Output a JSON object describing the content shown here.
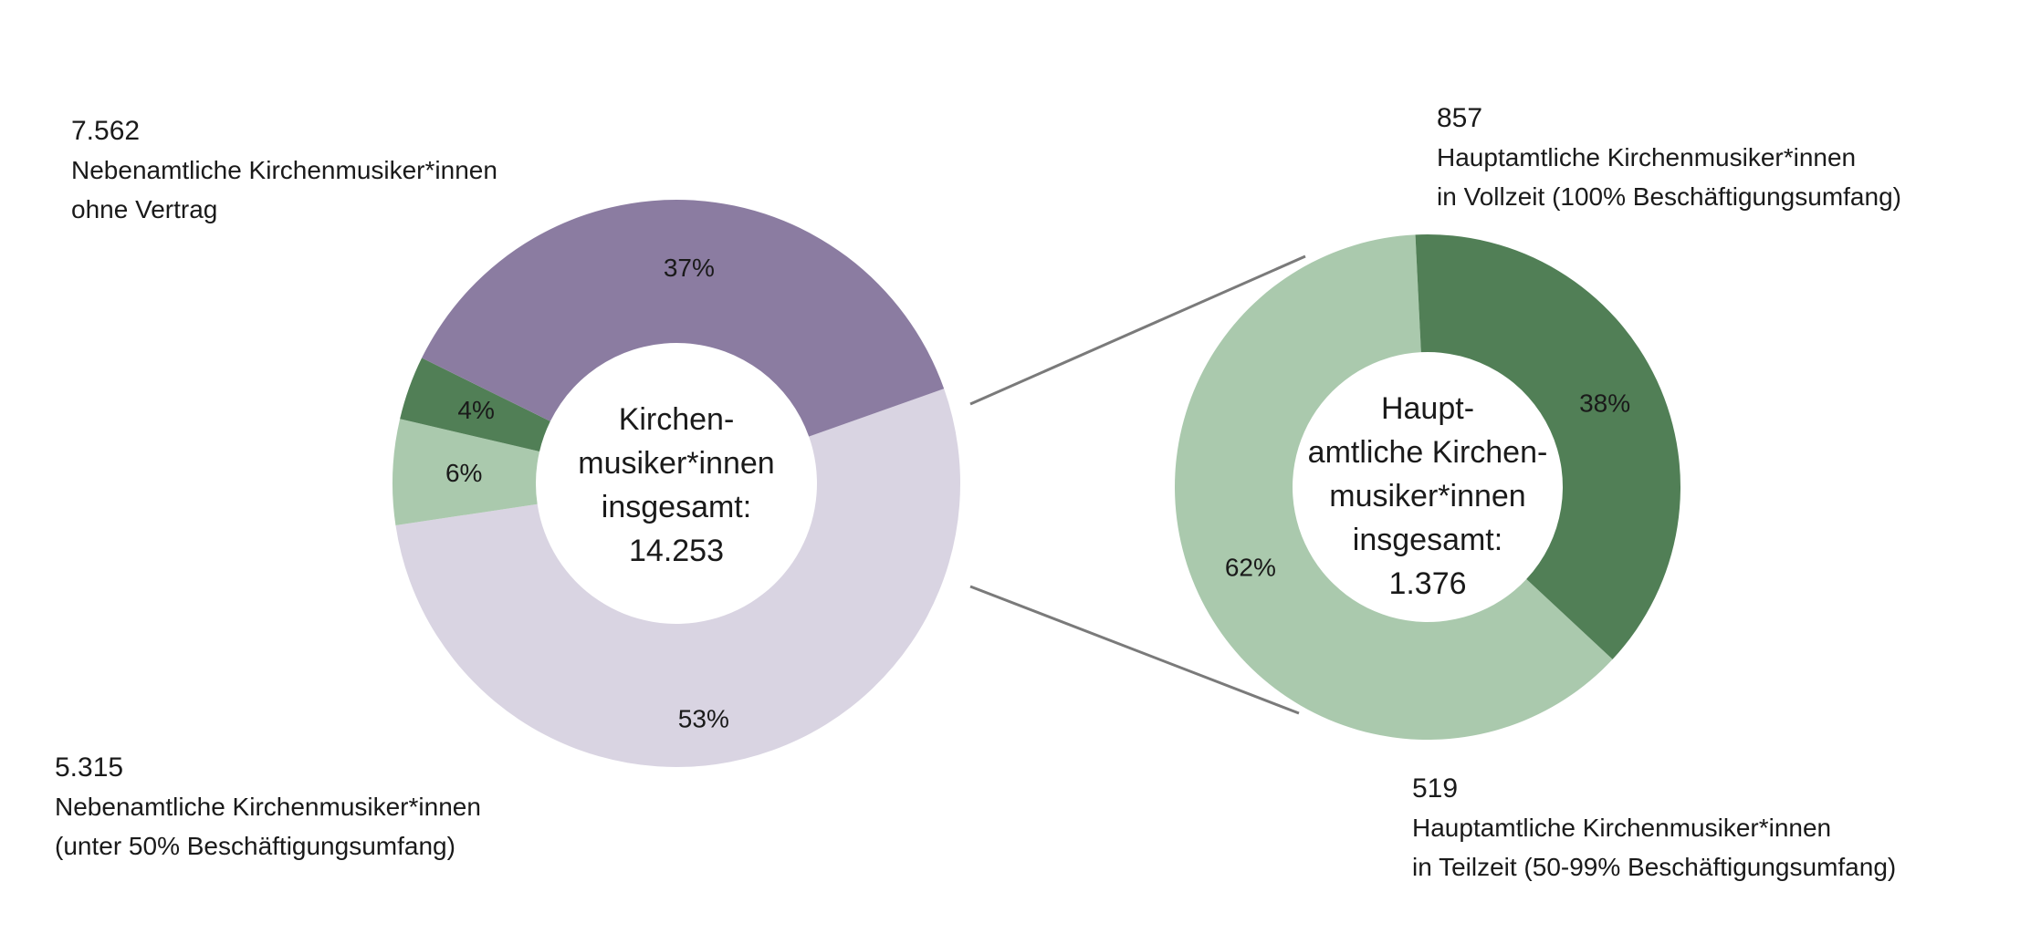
{
  "chart_data": [
    {
      "type": "pie",
      "variant": "donut",
      "center_label": [
        "Kirchen-",
        "musiker*innen",
        "insgesamt:",
        "14.253"
      ],
      "slices": [
        {
          "label": "Nebenamtliche Kirchenmusiker*innen ohne Vertrag",
          "value": 7562,
          "percent_label": "53%",
          "color": "#d9d4e2"
        },
        {
          "label": "Hauptamtliche Kirchenmusiker*innen in Vollzeit",
          "value": 857,
          "percent_label": "6%",
          "color": "#aac9ad"
        },
        {
          "label": "Hauptamtliche Kirchenmusiker*innen in Teilzeit",
          "value": 519,
          "percent_label": "4%",
          "color": "#517f56"
        },
        {
          "label": "Nebenamtliche Kirchenmusiker*innen (unter 50% Beschäftigungsumfang)",
          "value": 5315,
          "percent_label": "37%",
          "color": "#8b7ca1"
        }
      ]
    },
    {
      "type": "pie",
      "variant": "donut",
      "center_label": [
        "Haupt-",
        "amtliche Kirchen-",
        "musiker*innen",
        "insgesamt:",
        "1.376"
      ],
      "slices": [
        {
          "label": "Hauptamtliche Kirchenmusiker*innen in Vollzeit (100% Beschäftigungsumfang)",
          "value": 857,
          "percent_label": "62%",
          "color": "#aac9ad"
        },
        {
          "label": "Hauptamtliche Kirchenmusiker*innen in Teilzeit (50-99% Beschäftigungsumfang)",
          "value": 519,
          "percent_label": "38%",
          "color": "#517f56"
        }
      ]
    }
  ],
  "annotations": {
    "ohne_vertrag": {
      "number": "7.562",
      "lines": [
        "Nebenamtliche Kirchenmusiker*innen",
        "ohne Vertrag"
      ]
    },
    "nebenamtlich_unter50": {
      "number": "5.315",
      "lines": [
        "Nebenamtliche Kirchenmusiker*innen",
        "(unter 50% Beschäftigungsumfang)"
      ]
    },
    "vollzeit": {
      "number": "857",
      "lines": [
        "Hauptamtliche Kirchenmusiker*innen",
        "in Vollzeit (100% Beschäftigungsumfang)"
      ]
    },
    "teilzeit": {
      "number": "519",
      "lines": [
        "Hauptamtliche Kirchenmusiker*innen",
        "in Teilzeit (50-99% Beschäftigungsumfang)"
      ]
    }
  },
  "colors": {
    "connector": "#7a7a7a"
  }
}
